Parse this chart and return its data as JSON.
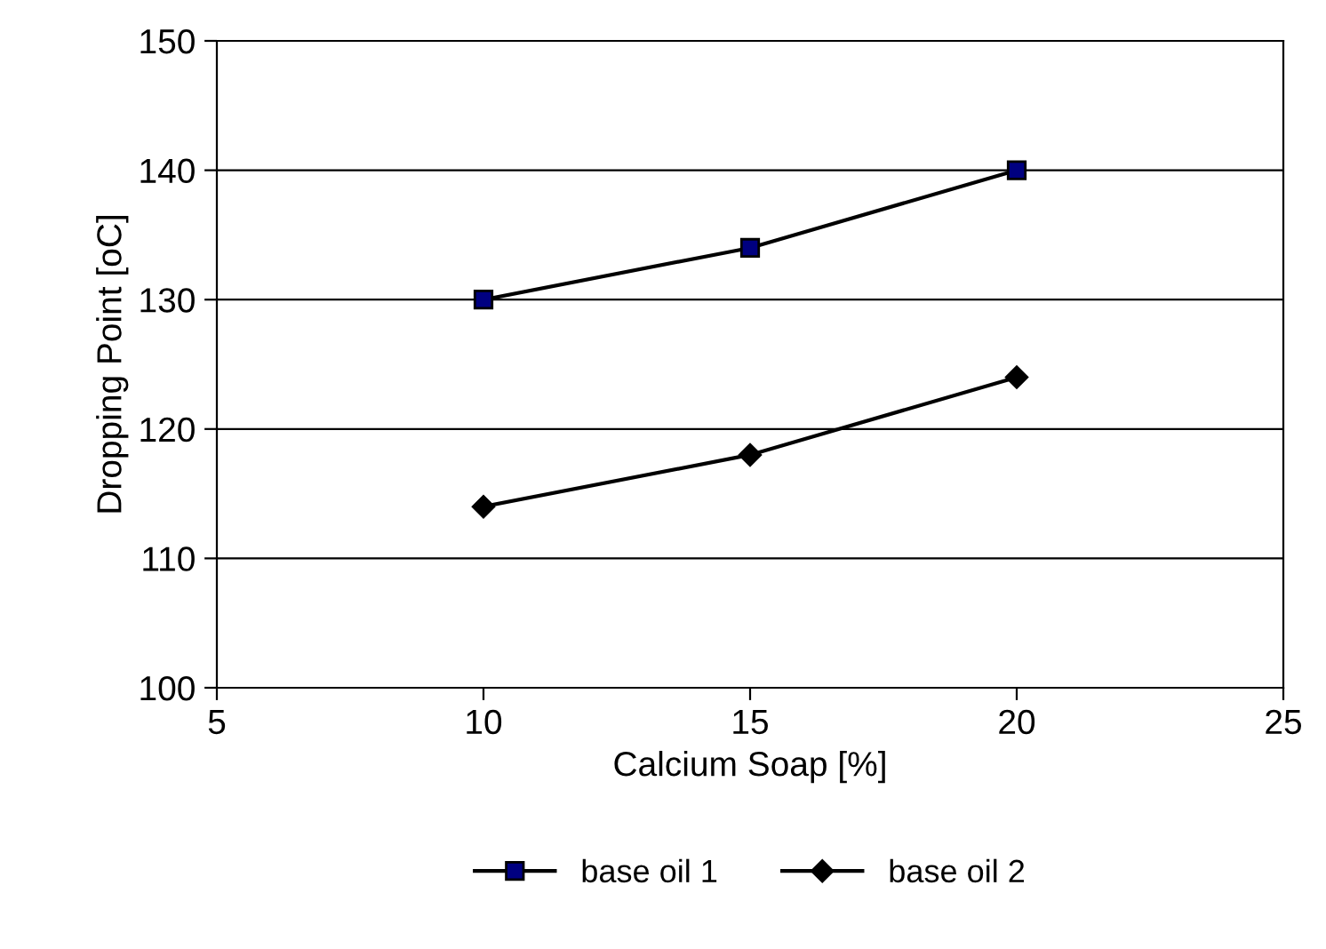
{
  "chart_data": {
    "type": "line",
    "xlabel": "Calcium Soap [%]",
    "ylabel": "Dropping Point [oC]",
    "x": [
      10,
      15,
      20
    ],
    "series": [
      {
        "name": "base oil 1",
        "color": "#000080",
        "marker": "square",
        "values": [
          130,
          134,
          140
        ]
      },
      {
        "name": "base oil 2",
        "color": "#000000",
        "marker": "diamond",
        "values": [
          114,
          118,
          124
        ]
      }
    ],
    "xlim": [
      5,
      25
    ],
    "xticks": [
      5,
      10,
      15,
      20,
      25
    ],
    "ylim": [
      100,
      150
    ],
    "yticks": [
      100,
      110,
      120,
      130,
      140,
      150
    ],
    "grid": "y",
    "legend": "bottom",
    "line_style": "solid"
  }
}
